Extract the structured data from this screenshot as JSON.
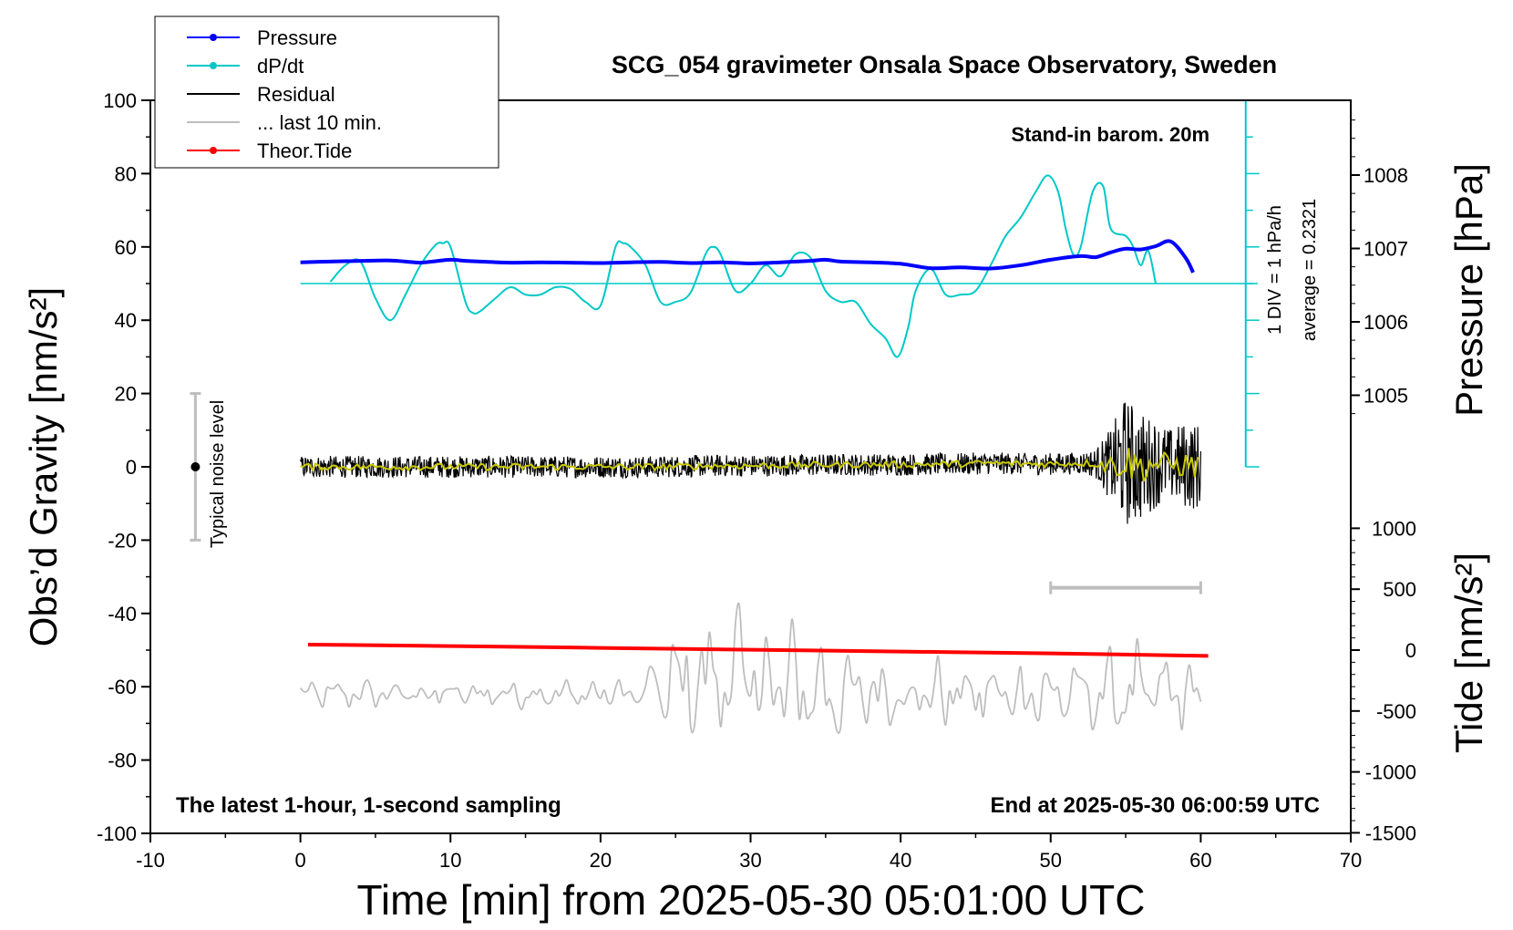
{
  "chart_data": {
    "type": "line",
    "title": "SCG_054 gravimeter Onsala Space Observatory, Sweden",
    "xlabel": "Time [min] from 2025-05-30 05:01:00 UTC",
    "ylabel_left": "Obs’d Gravity [nm/s²]",
    "ylabel_right_top": "Pressure [hPa]",
    "ylabel_right_bottom": "Tide [nm/s²]",
    "xlim": [
      -10,
      70
    ],
    "ylim": [
      -100,
      100
    ],
    "pressure_ylim": [
      1006.5,
      1008.5
    ],
    "tide_ylim": [
      -1500,
      1000
    ],
    "x_ticks": [
      "-10",
      "0",
      "10",
      "20",
      "30",
      "40",
      "50",
      "60",
      "70"
    ],
    "y_ticks": [
      "100",
      "80",
      "60",
      "40",
      "20",
      "0",
      "-20",
      "-40",
      "-60",
      "-80",
      "-100"
    ],
    "pressure_ticks": [
      "1008",
      "1007",
      "1006",
      "1005"
    ],
    "pressure_tick_values": [
      1008,
      1007,
      1006,
      1005
    ],
    "tide_ticks": [
      "1000",
      "500",
      "0",
      "-500",
      "-1000",
      "-1500"
    ],
    "tide_tick_values": [
      1000,
      500,
      0,
      -500,
      -1000,
      -1500
    ],
    "legend": [
      {
        "name": "Pressure",
        "color": "#0000ff",
        "marker": true
      },
      {
        "name": "dP/dt",
        "color": "#00c8c8",
        "marker": true
      },
      {
        "name": "Residual",
        "color": "#000000",
        "marker": false
      },
      {
        "name": "... last 10 min.",
        "color": "#bebebe",
        "marker": false
      },
      {
        "name": "Theor.Tide",
        "color": "#ff0000",
        "marker": true
      }
    ],
    "annotations": {
      "barometer": "Stand-in barom. 20m",
      "sampling": "The latest 1-hour, 1-second sampling",
      "end_time": "End at 2025-05-30 06:00:59 UTC",
      "noise": "Typical noise level",
      "dpdt_scale": "1 DIV = 1 hPa/h",
      "dpdt_average": "average = 0.2321"
    },
    "noise_bar": {
      "x": -7,
      "y_center": 0,
      "y_half_range": 20
    },
    "last10_bar": {
      "x_start": 50,
      "x_end": 60,
      "y": -33
    },
    "dpdt_baseline_y": 50,
    "series": [
      {
        "name": "Pressure",
        "color": "#0000ff",
        "axis": "left",
        "x": [
          0,
          2,
          4,
          6,
          7,
          8,
          9,
          10,
          11,
          12,
          14,
          16,
          18,
          20,
          22,
          24,
          26,
          28,
          30,
          32,
          34,
          35,
          36,
          38,
          40,
          42,
          44,
          46,
          48,
          50,
          52,
          53,
          54,
          55,
          56,
          57,
          58,
          59,
          59.5
        ],
        "y": [
          55.8,
          56,
          56.2,
          56.3,
          56,
          55.7,
          56.1,
          56.5,
          56.2,
          56,
          55.7,
          55.8,
          55.7,
          55.6,
          55.8,
          55.9,
          55.6,
          55.8,
          55.5,
          55.8,
          56.2,
          56.5,
          56,
          55.8,
          55.4,
          54.2,
          54.4,
          54.1,
          55,
          56.5,
          57.5,
          57.2,
          58.5,
          59.5,
          59.3,
          60.2,
          61.5,
          57,
          53
        ]
      },
      {
        "name": "dP/dt",
        "color": "#00c8c8",
        "axis": "left",
        "x": [
          2,
          3,
          4,
          5,
          6,
          7,
          8,
          9,
          9.5,
          10,
          11,
          11.5,
          12,
          13,
          14,
          15,
          16,
          17,
          18,
          19,
          20,
          21,
          21.5,
          22,
          23,
          24,
          25,
          26,
          27,
          27.5,
          28,
          29,
          30,
          31,
          32,
          33,
          34,
          35,
          36,
          37,
          38,
          39,
          39.8,
          40.5,
          41,
          42,
          43,
          44,
          45,
          46,
          47,
          48,
          49,
          49.8,
          50.5,
          51,
          51.5,
          52,
          52.8,
          53.5,
          54,
          55,
          55.5,
          56,
          56.5,
          57
        ],
        "y": [
          50.5,
          55,
          56,
          46,
          40,
          47,
          55,
          60.5,
          61,
          60,
          45,
          42,
          42.5,
          46,
          49,
          47,
          47,
          49,
          48.5,
          45,
          44,
          60,
          61,
          60,
          55,
          45,
          45,
          47.5,
          58,
          60,
          58,
          48,
          50,
          55,
          52,
          58,
          57,
          48,
          45,
          45,
          39,
          35,
          30,
          38,
          48,
          54,
          47,
          47,
          48,
          55,
          63,
          68,
          75,
          79.5,
          75,
          65,
          58,
          60,
          75,
          76.5,
          65,
          63,
          60,
          55,
          59,
          50
        ]
      },
      {
        "name": "Residual",
        "color": "#000000",
        "axis": "left",
        "x": [
          0,
          2,
          4,
          6,
          8,
          10,
          12,
          14,
          16,
          18,
          20,
          22,
          24,
          26,
          28,
          30,
          32,
          34,
          36,
          38,
          40,
          42,
          44,
          46,
          48,
          50,
          52,
          53,
          54,
          55,
          56,
          57,
          58,
          59,
          60
        ],
        "y": [
          0,
          0,
          0,
          0,
          0,
          0,
          0,
          0,
          0,
          0,
          0,
          0,
          0,
          0.2,
          0.3,
          0.3,
          0.4,
          0.5,
          0.6,
          0.6,
          0.6,
          0.7,
          0.8,
          1,
          0.8,
          0.8,
          1,
          1,
          0.5,
          1.5,
          0,
          1,
          0.5,
          0.5,
          0
        ],
        "amplitude": [
          3,
          3,
          3,
          3,
          3,
          3,
          3,
          3,
          3,
          3,
          3,
          3,
          3,
          3,
          3,
          3,
          3,
          3,
          3,
          3,
          3,
          3,
          3,
          3,
          3,
          3,
          3,
          4,
          10,
          18,
          15,
          12,
          10,
          12,
          12
        ]
      },
      {
        "name": "... last 10 min.",
        "color": "#bebebe",
        "axis": "left",
        "x": [
          0,
          5,
          10,
          15,
          20,
          22,
          23,
          24,
          25,
          26,
          27,
          28,
          29,
          30,
          31,
          32,
          33,
          34,
          35,
          36,
          37,
          38,
          39,
          40,
          42,
          44,
          46,
          48,
          50,
          52,
          54,
          56,
          58,
          60
        ],
        "y": [
          -62,
          -62,
          -62,
          -62,
          -62,
          -62,
          -62,
          -60,
          -60,
          -60,
          -58,
          -58,
          -56,
          -60,
          -58,
          -60,
          -60,
          -60,
          -62,
          -62,
          -62,
          -62,
          -62,
          -62,
          -62,
          -62,
          -62,
          -62,
          -62,
          -62,
          -62,
          -62,
          -62,
          -62
        ],
        "amplitude": [
          4,
          4,
          4,
          4,
          4,
          6,
          8,
          14,
          20,
          12,
          18,
          18,
          24,
          14,
          24,
          22,
          16,
          20,
          18,
          12,
          12,
          10,
          10,
          10,
          10,
          10,
          10,
          10,
          10,
          10,
          12,
          14,
          12,
          10
        ]
      },
      {
        "name": "Theor.Tide",
        "color": "#ff0000",
        "axis": "left",
        "x": [
          0.5,
          10,
          20,
          30,
          40,
          50,
          60.5
        ],
        "y": [
          -48.5,
          -48.9,
          -49.4,
          -49.9,
          -50.4,
          -50.9,
          -51.6
        ]
      }
    ]
  }
}
